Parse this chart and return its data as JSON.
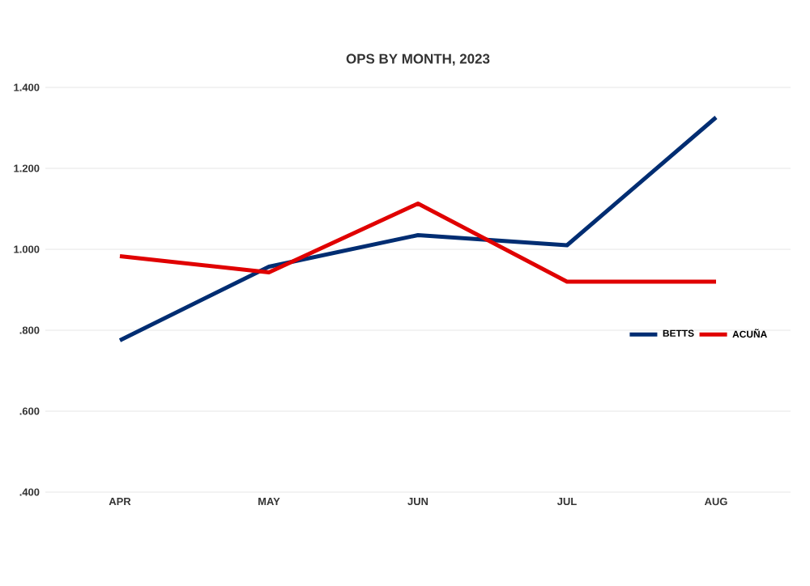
{
  "chart_data": {
    "type": "line",
    "title": "OPS BY MONTH, 2023",
    "categories": [
      "APR",
      "MAY",
      "JUN",
      "JUL",
      "AUG"
    ],
    "series": [
      {
        "name": "BETTS",
        "color": "#002d72",
        "values": [
          0.775,
          0.957,
          1.035,
          1.01,
          1.326
        ]
      },
      {
        "name": "ACUÑA",
        "color": "#e00000",
        "values": [
          0.983,
          0.943,
          1.113,
          0.92,
          0.92
        ]
      }
    ],
    "ylim": [
      0.4,
      1.4
    ],
    "yticks": [
      {
        "value": 0.4,
        "label": ".400"
      },
      {
        "value": 0.6,
        "label": ".600"
      },
      {
        "value": 0.8,
        "label": ".800"
      },
      {
        "value": 1.0,
        "label": "1.000"
      },
      {
        "value": 1.2,
        "label": "1.200"
      },
      {
        "value": 1.4,
        "label": "1.400"
      }
    ],
    "grid": "y",
    "legend": "right",
    "marker": "none",
    "line_style": "solid"
  }
}
